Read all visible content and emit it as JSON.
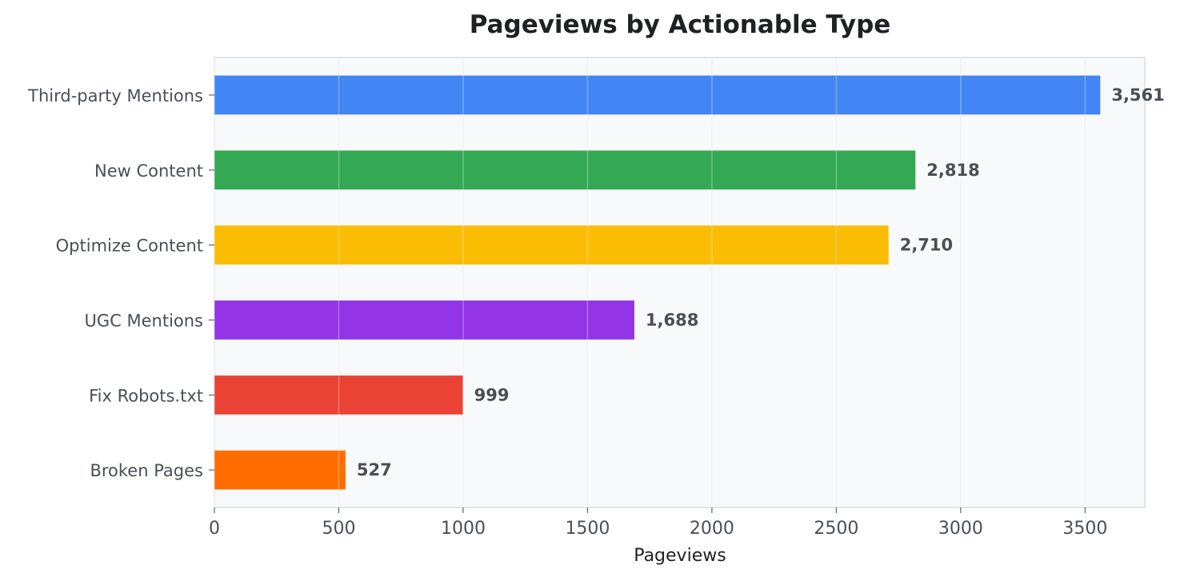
{
  "chart_data": {
    "type": "bar",
    "orientation": "horizontal",
    "title": "Pageviews by Actionable Type",
    "xlabel": "Pageviews",
    "ylabel": "",
    "categories": [
      "Third-party Mentions",
      "New Content",
      "Optimize Content",
      "UGC Mentions",
      "Fix Robots.txt",
      "Broken Pages"
    ],
    "values": [
      3561,
      2818,
      2710,
      1688,
      999,
      527
    ],
    "value_labels": [
      "3,561",
      "2,818",
      "2,710",
      "1,688",
      "999",
      "527"
    ],
    "colors": [
      "#4285f4",
      "#34a853",
      "#fbbc04",
      "#9334e6",
      "#ea4335",
      "#ff6d00"
    ],
    "xlim": [
      0,
      3740
    ],
    "xticks": [
      0,
      500,
      1000,
      1500,
      2000,
      2500,
      3000,
      3500
    ],
    "xtick_labels": [
      "0",
      "500",
      "1000",
      "1500",
      "2000",
      "2500",
      "3000",
      "3500"
    ],
    "grid": true,
    "grid_axis": "x",
    "plot_background": "#f8f9fa"
  }
}
